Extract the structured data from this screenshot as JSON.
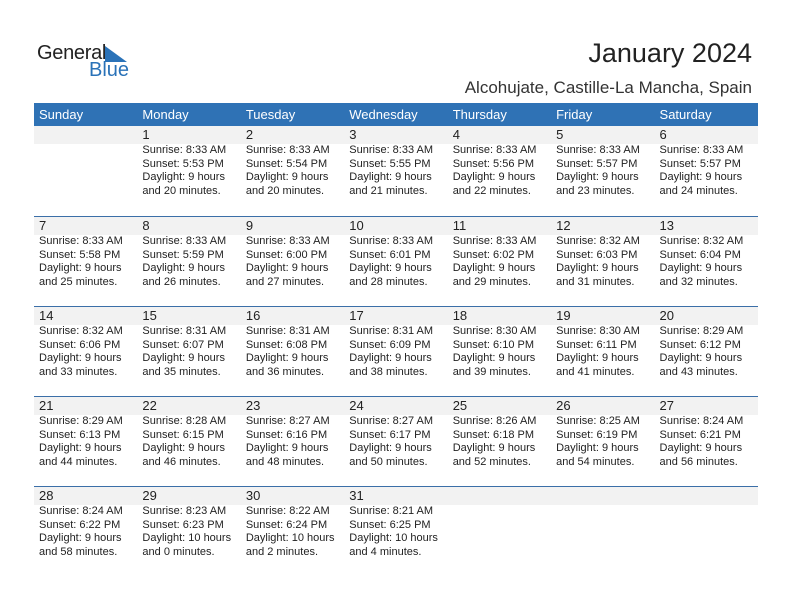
{
  "logo": {
    "line1": "General",
    "line2": "Blue",
    "accent": "#2a72b8"
  },
  "title": "January 2024",
  "subtitle": "Alcohujate, Castille-La Mancha, Spain",
  "colors": {
    "header_bg": "#2f72b5",
    "date_band": "#f2f2f2"
  },
  "days": [
    "Sunday",
    "Monday",
    "Tuesday",
    "Wednesday",
    "Thursday",
    "Friday",
    "Saturday"
  ],
  "weeks": [
    [
      null,
      {
        "day": "1",
        "sunrise": "Sunrise: 8:33 AM",
        "sunset": "Sunset: 5:53 PM",
        "daylight1": "Daylight: 9 hours",
        "daylight2": "and 20 minutes."
      },
      {
        "day": "2",
        "sunrise": "Sunrise: 8:33 AM",
        "sunset": "Sunset: 5:54 PM",
        "daylight1": "Daylight: 9 hours",
        "daylight2": "and 20 minutes."
      },
      {
        "day": "3",
        "sunrise": "Sunrise: 8:33 AM",
        "sunset": "Sunset: 5:55 PM",
        "daylight1": "Daylight: 9 hours",
        "daylight2": "and 21 minutes."
      },
      {
        "day": "4",
        "sunrise": "Sunrise: 8:33 AM",
        "sunset": "Sunset: 5:56 PM",
        "daylight1": "Daylight: 9 hours",
        "daylight2": "and 22 minutes."
      },
      {
        "day": "5",
        "sunrise": "Sunrise: 8:33 AM",
        "sunset": "Sunset: 5:57 PM",
        "daylight1": "Daylight: 9 hours",
        "daylight2": "and 23 minutes."
      },
      {
        "day": "6",
        "sunrise": "Sunrise: 8:33 AM",
        "sunset": "Sunset: 5:57 PM",
        "daylight1": "Daylight: 9 hours",
        "daylight2": "and 24 minutes."
      }
    ],
    [
      {
        "day": "7",
        "sunrise": "Sunrise: 8:33 AM",
        "sunset": "Sunset: 5:58 PM",
        "daylight1": "Daylight: 9 hours",
        "daylight2": "and 25 minutes."
      },
      {
        "day": "8",
        "sunrise": "Sunrise: 8:33 AM",
        "sunset": "Sunset: 5:59 PM",
        "daylight1": "Daylight: 9 hours",
        "daylight2": "and 26 minutes."
      },
      {
        "day": "9",
        "sunrise": "Sunrise: 8:33 AM",
        "sunset": "Sunset: 6:00 PM",
        "daylight1": "Daylight: 9 hours",
        "daylight2": "and 27 minutes."
      },
      {
        "day": "10",
        "sunrise": "Sunrise: 8:33 AM",
        "sunset": "Sunset: 6:01 PM",
        "daylight1": "Daylight: 9 hours",
        "daylight2": "and 28 minutes."
      },
      {
        "day": "11",
        "sunrise": "Sunrise: 8:33 AM",
        "sunset": "Sunset: 6:02 PM",
        "daylight1": "Daylight: 9 hours",
        "daylight2": "and 29 minutes."
      },
      {
        "day": "12",
        "sunrise": "Sunrise: 8:32 AM",
        "sunset": "Sunset: 6:03 PM",
        "daylight1": "Daylight: 9 hours",
        "daylight2": "and 31 minutes."
      },
      {
        "day": "13",
        "sunrise": "Sunrise: 8:32 AM",
        "sunset": "Sunset: 6:04 PM",
        "daylight1": "Daylight: 9 hours",
        "daylight2": "and 32 minutes."
      }
    ],
    [
      {
        "day": "14",
        "sunrise": "Sunrise: 8:32 AM",
        "sunset": "Sunset: 6:06 PM",
        "daylight1": "Daylight: 9 hours",
        "daylight2": "and 33 minutes."
      },
      {
        "day": "15",
        "sunrise": "Sunrise: 8:31 AM",
        "sunset": "Sunset: 6:07 PM",
        "daylight1": "Daylight: 9 hours",
        "daylight2": "and 35 minutes."
      },
      {
        "day": "16",
        "sunrise": "Sunrise: 8:31 AM",
        "sunset": "Sunset: 6:08 PM",
        "daylight1": "Daylight: 9 hours",
        "daylight2": "and 36 minutes."
      },
      {
        "day": "17",
        "sunrise": "Sunrise: 8:31 AM",
        "sunset": "Sunset: 6:09 PM",
        "daylight1": "Daylight: 9 hours",
        "daylight2": "and 38 minutes."
      },
      {
        "day": "18",
        "sunrise": "Sunrise: 8:30 AM",
        "sunset": "Sunset: 6:10 PM",
        "daylight1": "Daylight: 9 hours",
        "daylight2": "and 39 minutes."
      },
      {
        "day": "19",
        "sunrise": "Sunrise: 8:30 AM",
        "sunset": "Sunset: 6:11 PM",
        "daylight1": "Daylight: 9 hours",
        "daylight2": "and 41 minutes."
      },
      {
        "day": "20",
        "sunrise": "Sunrise: 8:29 AM",
        "sunset": "Sunset: 6:12 PM",
        "daylight1": "Daylight: 9 hours",
        "daylight2": "and 43 minutes."
      }
    ],
    [
      {
        "day": "21",
        "sunrise": "Sunrise: 8:29 AM",
        "sunset": "Sunset: 6:13 PM",
        "daylight1": "Daylight: 9 hours",
        "daylight2": "and 44 minutes."
      },
      {
        "day": "22",
        "sunrise": "Sunrise: 8:28 AM",
        "sunset": "Sunset: 6:15 PM",
        "daylight1": "Daylight: 9 hours",
        "daylight2": "and 46 minutes."
      },
      {
        "day": "23",
        "sunrise": "Sunrise: 8:27 AM",
        "sunset": "Sunset: 6:16 PM",
        "daylight1": "Daylight: 9 hours",
        "daylight2": "and 48 minutes."
      },
      {
        "day": "24",
        "sunrise": "Sunrise: 8:27 AM",
        "sunset": "Sunset: 6:17 PM",
        "daylight1": "Daylight: 9 hours",
        "daylight2": "and 50 minutes."
      },
      {
        "day": "25",
        "sunrise": "Sunrise: 8:26 AM",
        "sunset": "Sunset: 6:18 PM",
        "daylight1": "Daylight: 9 hours",
        "daylight2": "and 52 minutes."
      },
      {
        "day": "26",
        "sunrise": "Sunrise: 8:25 AM",
        "sunset": "Sunset: 6:19 PM",
        "daylight1": "Daylight: 9 hours",
        "daylight2": "and 54 minutes."
      },
      {
        "day": "27",
        "sunrise": "Sunrise: 8:24 AM",
        "sunset": "Sunset: 6:21 PM",
        "daylight1": "Daylight: 9 hours",
        "daylight2": "and 56 minutes."
      }
    ],
    [
      {
        "day": "28",
        "sunrise": "Sunrise: 8:24 AM",
        "sunset": "Sunset: 6:22 PM",
        "daylight1": "Daylight: 9 hours",
        "daylight2": "and 58 minutes."
      },
      {
        "day": "29",
        "sunrise": "Sunrise: 8:23 AM",
        "sunset": "Sunset: 6:23 PM",
        "daylight1": "Daylight: 10 hours",
        "daylight2": "and 0 minutes."
      },
      {
        "day": "30",
        "sunrise": "Sunrise: 8:22 AM",
        "sunset": "Sunset: 6:24 PM",
        "daylight1": "Daylight: 10 hours",
        "daylight2": "and 2 minutes."
      },
      {
        "day": "31",
        "sunrise": "Sunrise: 8:21 AM",
        "sunset": "Sunset: 6:25 PM",
        "daylight1": "Daylight: 10 hours",
        "daylight2": "and 4 minutes."
      },
      null,
      null,
      null
    ]
  ]
}
